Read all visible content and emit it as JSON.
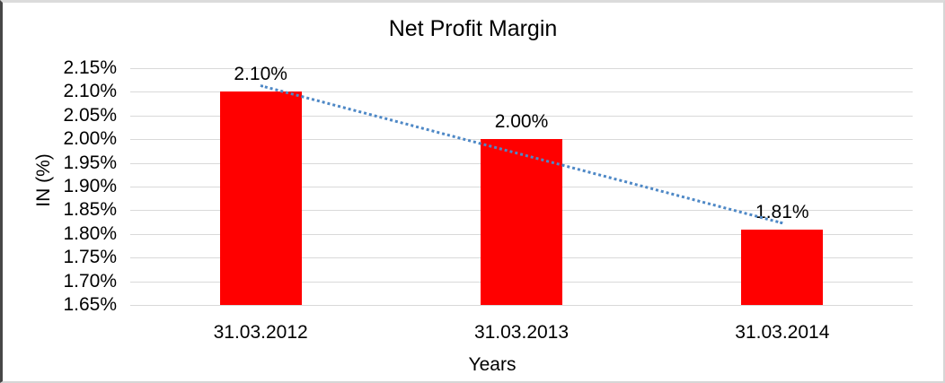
{
  "chart_data": {
    "type": "bar",
    "title": "Net Profit Margin",
    "xlabel": "Years",
    "ylabel": "IN (%)",
    "categories": [
      "31.03.2012",
      "31.03.2013",
      "31.03.2014"
    ],
    "values": [
      2.1,
      2.0,
      1.81
    ],
    "data_labels": [
      "2.10%",
      "2.00%",
      "1.81%"
    ],
    "y_ticks": [
      "2.15%",
      "2.10%",
      "2.05%",
      "2.00%",
      "1.95%",
      "1.90%",
      "1.85%",
      "1.80%",
      "1.75%",
      "1.70%",
      "1.65%"
    ],
    "ylim": [
      1.65,
      2.15
    ],
    "y_step": 0.05,
    "grid": true,
    "legend": "none",
    "bar_color": "#ff0000",
    "gridline_color": "#d9d9d9",
    "trendline": {
      "type": "linear",
      "style": "dotted",
      "color": "#4e88c6"
    }
  }
}
